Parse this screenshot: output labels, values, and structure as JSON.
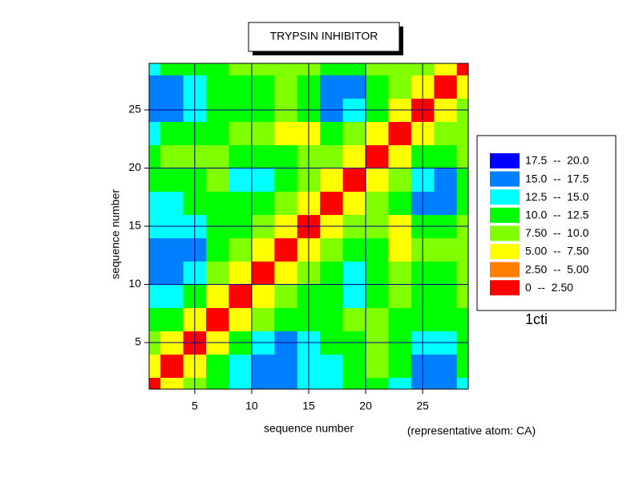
{
  "chart_data": {
    "type": "contour",
    "title": "TRYPSIN INHIBITOR",
    "x_label": "sequence number",
    "y_label": "sequence number",
    "note": "(representative atom: CA)",
    "legend_caption": "1cti",
    "x": [
      1,
      3,
      5,
      7,
      9,
      11,
      13,
      15,
      17,
      19,
      21,
      23,
      25,
      27,
      29
    ],
    "y": [
      1,
      3,
      5,
      7,
      9,
      11,
      13,
      15,
      17,
      19,
      21,
      23,
      25,
      27,
      29
    ],
    "z": [
      [
        0,
        6,
        9,
        11,
        13,
        16,
        17,
        14,
        13,
        12,
        11,
        13,
        17,
        16,
        13
      ],
      [
        6,
        0,
        6,
        10,
        13,
        15,
        17,
        14,
        13,
        11,
        9,
        12,
        16,
        15,
        12
      ],
      [
        9,
        6,
        0,
        6,
        10,
        13,
        16,
        14,
        12,
        10,
        9,
        11,
        14,
        14,
        11
      ],
      [
        11,
        10,
        6,
        0,
        6,
        9,
        12,
        12,
        11,
        9,
        8,
        10,
        12,
        12,
        10
      ],
      [
        13,
        13,
        10,
        6,
        0,
        6,
        9,
        10,
        12,
        13,
        11,
        9,
        10,
        10,
        9
      ],
      [
        16,
        15,
        13,
        9,
        6,
        0,
        6,
        9,
        11,
        13,
        11,
        8,
        10,
        10,
        8
      ],
      [
        17,
        17,
        16,
        12,
        9,
        6,
        0,
        6,
        9,
        10,
        10,
        7,
        9,
        9,
        8
      ],
      [
        14,
        14,
        14,
        12,
        10,
        9,
        6,
        0,
        6,
        9,
        9,
        5,
        10,
        11,
        9
      ],
      [
        13,
        13,
        12,
        11,
        12,
        11,
        9,
        6,
        0,
        6,
        9,
        10,
        15,
        16,
        12
      ],
      [
        12,
        11,
        10,
        9,
        13,
        13,
        10,
        9,
        6,
        0,
        6,
        9,
        13,
        15,
        11
      ],
      [
        11,
        9,
        9,
        8,
        11,
        11,
        10,
        9,
        9,
        6,
        0,
        6,
        10,
        11,
        9
      ],
      [
        13,
        12,
        11,
        10,
        9,
        8,
        7,
        5,
        10,
        9,
        6,
        0,
        6,
        9,
        8
      ],
      [
        17,
        16,
        14,
        12,
        10,
        10,
        9,
        10,
        15,
        13,
        10,
        6,
        0,
        6,
        9
      ],
      [
        16,
        15,
        14,
        12,
        10,
        10,
        9,
        11,
        16,
        15,
        11,
        9,
        6,
        0,
        6
      ],
      [
        13,
        12,
        11,
        10,
        9,
        8,
        8,
        9,
        12,
        11,
        9,
        8,
        9,
        6,
        0
      ]
    ],
    "levels": [
      0,
      2.5,
      5,
      7.5,
      10,
      12.5,
      15,
      17.5,
      20
    ],
    "legend": [
      {
        "label": "17.5  --  20.0",
        "color": "#0000ff"
      },
      {
        "label": "15.0  --  17.5",
        "color": "#0080ff"
      },
      {
        "label": "12.5  --  15.0",
        "color": "#00ffff"
      },
      {
        "label": "10.0  --  12.5",
        "color": "#00ff00"
      },
      {
        "label": "7.50  --  10.0",
        "color": "#80ff00"
      },
      {
        "label": "5.00  --  7.50",
        "color": "#ffff00"
      },
      {
        "label": "2.50  --  5.00",
        "color": "#ff8000"
      },
      {
        "label": "0  --  2.50",
        "color": "#ff0000"
      }
    ],
    "xlim": [
      1,
      29
    ],
    "ylim": [
      1,
      29
    ],
    "xticks": [
      5,
      10,
      15,
      20,
      25
    ],
    "yticks": [
      5,
      10,
      15,
      20,
      25
    ],
    "grid": true
  }
}
